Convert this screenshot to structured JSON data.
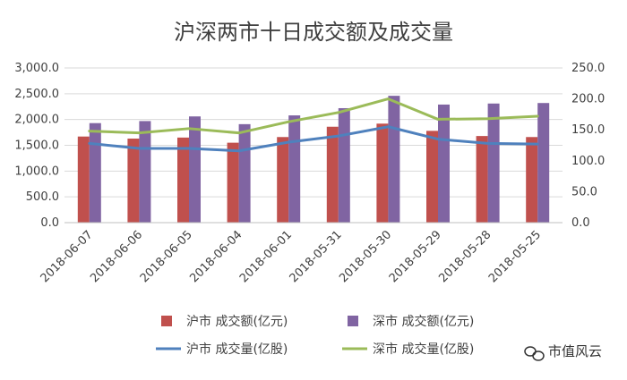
{
  "chart_data": {
    "type": "bar",
    "title": "沪深两市十日成交额及成交量",
    "categories": [
      "2018-06-07",
      "2018-06-06",
      "2018-06-05",
      "2018-06-04",
      "2018-06-01",
      "2018-05-31",
      "2018-05-30",
      "2018-05-29",
      "2018-05-28",
      "2018-05-25"
    ],
    "series": [
      {
        "name": "沪市 成交额(亿元)",
        "kind": "bar",
        "axis": "left",
        "color": "#c0504d",
        "values": [
          1670,
          1630,
          1650,
          1550,
          1660,
          1860,
          1920,
          1780,
          1680,
          1660
        ]
      },
      {
        "name": "深市 成交额(亿元)",
        "kind": "bar",
        "axis": "left",
        "color": "#8064a2",
        "values": [
          1930,
          1970,
          2060,
          1910,
          2080,
          2220,
          2460,
          2290,
          2310,
          2320
        ]
      },
      {
        "name": "沪市 成交量(亿股)",
        "kind": "line",
        "axis": "right",
        "color": "#4f81bd",
        "values": [
          128,
          120,
          120,
          116,
          130,
          140,
          155,
          135,
          128,
          127
        ]
      },
      {
        "name": "深市 成交量(亿股)",
        "kind": "line",
        "axis": "right",
        "color": "#9bbb59",
        "values": [
          148,
          145,
          152,
          145,
          163,
          178,
          200,
          167,
          168,
          172
        ]
      }
    ],
    "y_left": {
      "min": 0,
      "max": 3000,
      "ticks": [
        "0.0",
        "500.0",
        "1,000.0",
        "1,500.0",
        "2,000.0",
        "2,500.0",
        "3,000.0"
      ]
    },
    "y_right": {
      "min": 0,
      "max": 250,
      "ticks": [
        "0.0",
        "50.0",
        "100.0",
        "150.0",
        "200.0",
        "250.0"
      ]
    },
    "grid": true,
    "legend_position": "bottom"
  },
  "watermark": {
    "text": "市值风云",
    "icon": "speech-bubbles-icon"
  }
}
